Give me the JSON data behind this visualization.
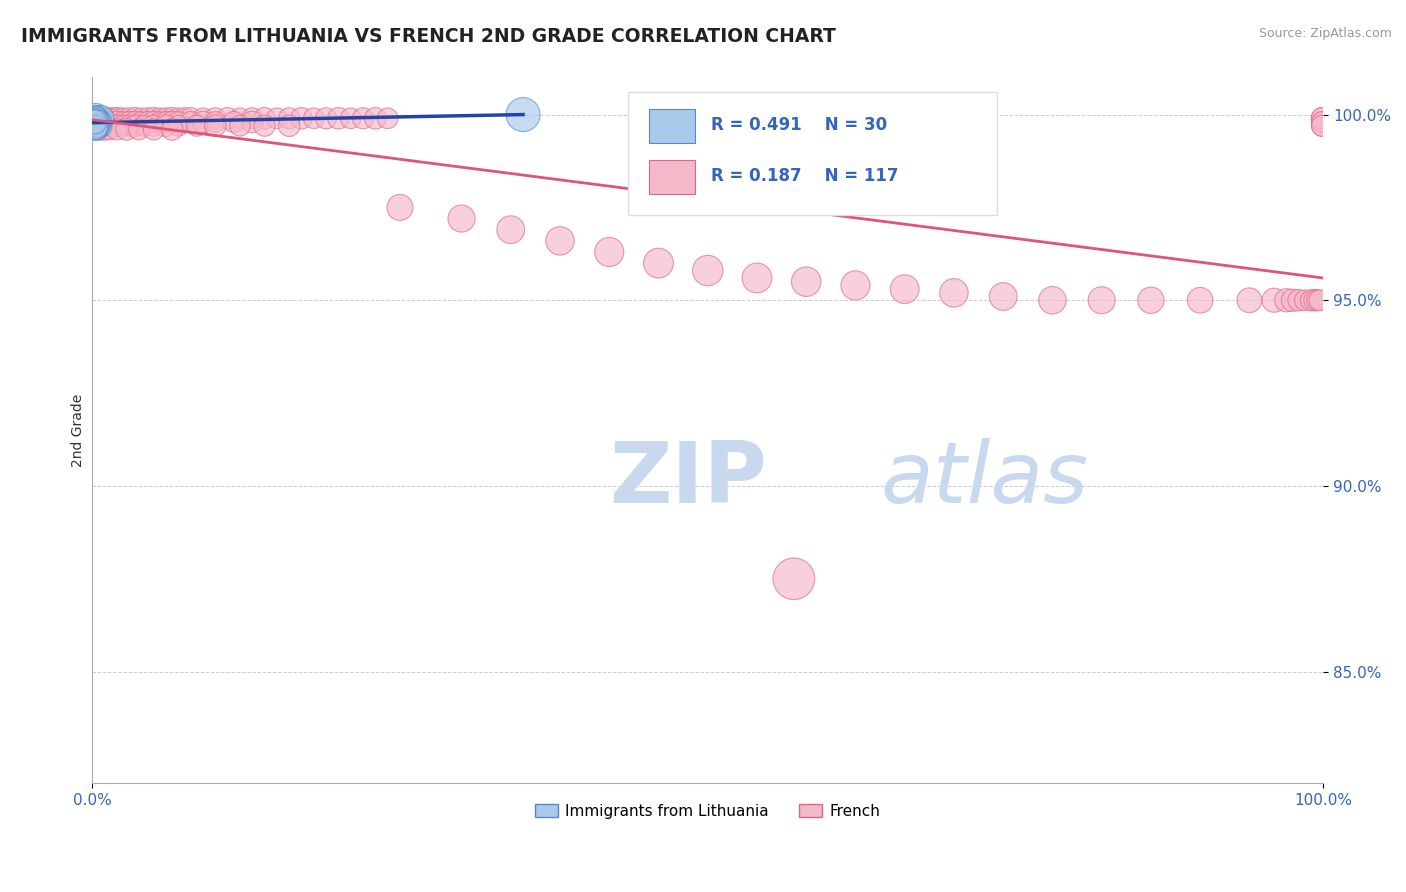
{
  "title": "IMMIGRANTS FROM LITHUANIA VS FRENCH 2ND GRADE CORRELATION CHART",
  "source": "Source: ZipAtlas.com",
  "ylabel": "2nd Grade",
  "blue_R": 0.491,
  "blue_N": 30,
  "pink_R": 0.187,
  "pink_N": 117,
  "blue_color": "#aac8e8",
  "pink_color": "#f5b8c8",
  "blue_edge_color": "#5588cc",
  "pink_edge_color": "#dd6688",
  "blue_line_color": "#2244aa",
  "pink_line_color": "#dd5577",
  "axis_label_color": "#3366bb",
  "title_color": "#222222",
  "grid_color": "#cccccc",
  "watermark_zip_color": "#c8d8ee",
  "watermark_atlas_color": "#c8d8ee",
  "xlim": [
    0.0,
    1.0
  ],
  "ylim": [
    0.82,
    1.01
  ],
  "yticks": [
    0.85,
    0.9,
    0.95,
    1.0
  ],
  "ytick_labels": [
    "85.0%",
    "90.0%",
    "95.0%",
    "100.0%"
  ],
  "xtick_labels": [
    "0.0%",
    "100.0%"
  ],
  "blue_scatter_x": [
    0.002,
    0.003,
    0.004,
    0.005,
    0.006,
    0.007,
    0.002,
    0.003,
    0.004,
    0.002,
    0.003,
    0.004,
    0.005,
    0.002,
    0.003,
    0.006,
    0.003,
    0.004,
    0.002,
    0.003,
    0.003,
    0.002,
    0.004,
    0.003,
    0.002,
    0.003,
    0.004,
    0.35,
    0.003,
    0.002
  ],
  "blue_scatter_y": [
    0.999,
    0.9995,
    0.998,
    0.9985,
    0.997,
    0.999,
    0.9975,
    0.998,
    0.9965,
    0.999,
    0.997,
    0.9985,
    0.998,
    0.9975,
    0.999,
    0.998,
    0.9965,
    0.997,
    0.998,
    0.999,
    0.996,
    0.9975,
    0.998,
    0.997,
    0.9985,
    0.998,
    0.997,
    1.0,
    0.9965,
    0.998
  ],
  "blue_scatter_sizes": [
    300,
    350,
    280,
    400,
    320,
    350,
    260,
    300,
    280,
    320,
    350,
    280,
    300,
    260,
    320,
    300,
    280,
    350,
    300,
    280,
    260,
    300,
    320,
    280,
    300,
    350,
    280,
    600,
    280,
    300
  ],
  "pink_scatter_x": [
    0.002,
    0.004,
    0.006,
    0.008,
    0.01,
    0.012,
    0.015,
    0.018,
    0.021,
    0.025,
    0.03,
    0.035,
    0.04,
    0.045,
    0.05,
    0.055,
    0.06,
    0.065,
    0.07,
    0.075,
    0.08,
    0.09,
    0.1,
    0.11,
    0.12,
    0.13,
    0.14,
    0.15,
    0.16,
    0.17,
    0.18,
    0.19,
    0.2,
    0.21,
    0.22,
    0.23,
    0.24,
    0.01,
    0.015,
    0.02,
    0.025,
    0.03,
    0.035,
    0.04,
    0.045,
    0.05,
    0.055,
    0.06,
    0.065,
    0.07,
    0.08,
    0.09,
    0.1,
    0.115,
    0.13,
    0.003,
    0.005,
    0.008,
    0.012,
    0.016,
    0.02,
    0.025,
    0.03,
    0.035,
    0.042,
    0.05,
    0.06,
    0.07,
    0.085,
    0.1,
    0.12,
    0.14,
    0.16,
    0.004,
    0.007,
    0.01,
    0.014,
    0.02,
    0.028,
    0.038,
    0.05,
    0.065,
    0.003,
    0.25,
    0.3,
    0.34,
    0.38,
    0.42,
    0.46,
    0.5,
    0.54,
    0.58,
    0.62,
    0.66,
    0.7,
    0.74,
    0.78,
    0.82,
    0.86,
    0.9,
    0.94,
    0.96,
    0.97,
    0.975,
    0.98,
    0.985,
    0.99,
    0.993,
    0.995,
    0.997,
    0.999,
    0.999,
    0.999,
    0.999,
    0.999,
    0.999,
    0.57
  ],
  "pink_scatter_y": [
    0.999,
    0.999,
    0.999,
    0.999,
    0.999,
    0.999,
    0.999,
    0.999,
    0.999,
    0.999,
    0.999,
    0.999,
    0.999,
    0.999,
    0.999,
    0.999,
    0.999,
    0.999,
    0.999,
    0.999,
    0.999,
    0.999,
    0.999,
    0.999,
    0.999,
    0.999,
    0.999,
    0.999,
    0.999,
    0.999,
    0.999,
    0.999,
    0.999,
    0.999,
    0.999,
    0.999,
    0.999,
    0.998,
    0.998,
    0.998,
    0.998,
    0.998,
    0.998,
    0.998,
    0.998,
    0.998,
    0.998,
    0.998,
    0.998,
    0.998,
    0.998,
    0.998,
    0.998,
    0.998,
    0.998,
    0.997,
    0.997,
    0.997,
    0.997,
    0.997,
    0.997,
    0.997,
    0.997,
    0.997,
    0.997,
    0.997,
    0.997,
    0.997,
    0.997,
    0.997,
    0.997,
    0.997,
    0.997,
    0.996,
    0.996,
    0.996,
    0.996,
    0.996,
    0.996,
    0.996,
    0.996,
    0.996,
    0.999,
    0.975,
    0.972,
    0.969,
    0.966,
    0.963,
    0.96,
    0.958,
    0.956,
    0.955,
    0.954,
    0.953,
    0.952,
    0.951,
    0.95,
    0.95,
    0.95,
    0.95,
    0.95,
    0.95,
    0.95,
    0.95,
    0.95,
    0.95,
    0.95,
    0.95,
    0.95,
    0.95,
    0.999,
    0.998,
    0.997,
    0.999,
    0.998,
    0.997,
    0.875
  ],
  "pink_scatter_sizes": [
    220,
    230,
    240,
    220,
    230,
    240,
    220,
    230,
    240,
    220,
    230,
    240,
    220,
    230,
    240,
    220,
    230,
    240,
    220,
    230,
    240,
    220,
    230,
    240,
    220,
    230,
    240,
    220,
    230,
    240,
    220,
    230,
    240,
    220,
    230,
    240,
    220,
    220,
    230,
    240,
    220,
    230,
    240,
    220,
    230,
    240,
    220,
    230,
    240,
    220,
    230,
    240,
    220,
    230,
    240,
    220,
    230,
    240,
    220,
    230,
    240,
    220,
    230,
    240,
    220,
    230,
    240,
    220,
    230,
    240,
    220,
    230,
    240,
    220,
    230,
    240,
    220,
    230,
    240,
    220,
    230,
    240,
    220,
    350,
    380,
    400,
    420,
    440,
    460,
    480,
    460,
    450,
    440,
    430,
    420,
    400,
    390,
    380,
    360,
    340,
    320,
    300,
    280,
    260,
    240,
    220,
    230,
    240,
    220,
    230,
    240,
    220,
    230,
    240,
    220,
    230,
    900
  ]
}
